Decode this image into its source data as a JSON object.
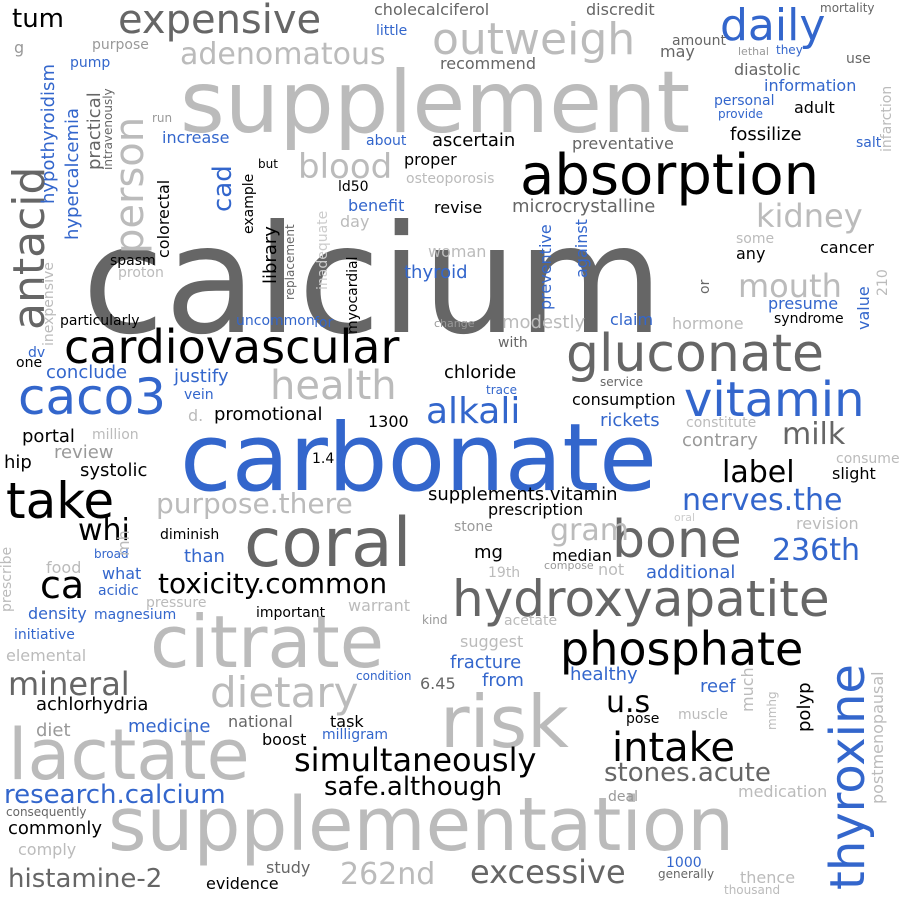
{
  "colors": {
    "black": "#000000",
    "dark": "#666666",
    "mid": "#999999",
    "light": "#bbbbbb",
    "lighter": "#cccccc",
    "blue": "#3366cc"
  },
  "words": [
    {
      "text": "calcium",
      "color": "dark"
    },
    {
      "text": "carbonate",
      "color": "blue"
    },
    {
      "text": "supplement",
      "color": "light"
    },
    {
      "text": "supplementation",
      "color": "light"
    },
    {
      "text": "absorption",
      "color": "black"
    },
    {
      "text": "coral",
      "color": "dark"
    },
    {
      "text": "citrate",
      "color": "light"
    },
    {
      "text": "risk",
      "color": "light"
    },
    {
      "text": "lactate",
      "color": "light"
    },
    {
      "text": "hydroxyapatite",
      "color": "dark"
    },
    {
      "text": "thyroxine",
      "color": "blue"
    },
    {
      "text": "gluconate",
      "color": "dark"
    },
    {
      "text": "cardiovascular",
      "color": "black"
    },
    {
      "text": "caco3",
      "color": "blue"
    },
    {
      "text": "phosphate",
      "color": "black"
    },
    {
      "text": "intake",
      "color": "black"
    },
    {
      "text": "bone",
      "color": "dark"
    },
    {
      "text": "vitamin",
      "color": "blue"
    },
    {
      "text": "take",
      "color": "black"
    },
    {
      "text": "antacid",
      "color": "dark"
    },
    {
      "text": "expensive",
      "color": "dark"
    },
    {
      "text": "outweigh",
      "color": "light"
    },
    {
      "text": "daily",
      "color": "blue"
    },
    {
      "text": "person",
      "color": "light"
    },
    {
      "text": "dietary",
      "color": "light"
    },
    {
      "text": "health",
      "color": "light"
    },
    {
      "text": "simultaneously",
      "color": "black"
    },
    {
      "text": "alkali",
      "color": "blue"
    },
    {
      "text": "excessive",
      "color": "dark"
    },
    {
      "text": "mineral",
      "color": "dark"
    },
    {
      "text": "ca",
      "color": "black"
    },
    {
      "text": "toxicity.common",
      "color": "black"
    },
    {
      "text": "purpose.there",
      "color": "light"
    },
    {
      "text": "safe.although",
      "color": "black"
    },
    {
      "text": "research.calcium",
      "color": "blue"
    },
    {
      "text": "blood",
      "color": "light"
    },
    {
      "text": "adenomatous",
      "color": "light"
    },
    {
      "text": "kidney",
      "color": "light"
    },
    {
      "text": "mouth",
      "color": "light"
    },
    {
      "text": "milk",
      "color": "dark"
    },
    {
      "text": "label",
      "color": "black"
    },
    {
      "text": "nerves.the",
      "color": "blue"
    },
    {
      "text": "236th",
      "color": "blue"
    },
    {
      "text": "gram",
      "color": "light"
    },
    {
      "text": "262nd",
      "color": "light"
    },
    {
      "text": "stones.acute",
      "color": "dark"
    },
    {
      "text": "u.s",
      "color": "black"
    },
    {
      "text": "histamine-2",
      "color": "dark"
    },
    {
      "text": "whi",
      "color": "black"
    },
    {
      "text": "tum",
      "color": "black"
    },
    {
      "text": "cad",
      "color": "blue"
    },
    {
      "text": "ascertain",
      "color": "black"
    },
    {
      "text": "microcrystalline",
      "color": "dark"
    },
    {
      "text": "chloride",
      "color": "black"
    },
    {
      "text": "conclude",
      "color": "blue"
    },
    {
      "text": "justify",
      "color": "blue"
    },
    {
      "text": "promotional",
      "color": "black"
    },
    {
      "text": "portal",
      "color": "black"
    },
    {
      "text": "hip",
      "color": "black"
    },
    {
      "text": "systolic",
      "color": "black"
    },
    {
      "text": "review",
      "color": "mid"
    },
    {
      "text": "rickets",
      "color": "blue"
    },
    {
      "text": "consumption",
      "color": "black"
    },
    {
      "text": "contrary",
      "color": "mid"
    },
    {
      "text": "supplements.vitamin",
      "color": "black"
    },
    {
      "text": "prescription",
      "color": "black"
    },
    {
      "text": "stone",
      "color": "mid"
    },
    {
      "text": "mg",
      "color": "black"
    },
    {
      "text": "median",
      "color": "black"
    },
    {
      "text": "additional",
      "color": "blue"
    },
    {
      "text": "reef",
      "color": "blue"
    },
    {
      "text": "healthy",
      "color": "blue"
    },
    {
      "text": "fracture",
      "color": "blue"
    },
    {
      "text": "from",
      "color": "blue"
    },
    {
      "text": "6.45",
      "color": "dark"
    },
    {
      "text": "achlorhydria",
      "color": "black"
    },
    {
      "text": "medicine",
      "color": "blue"
    },
    {
      "text": "national",
      "color": "dark"
    },
    {
      "text": "task",
      "color": "black"
    },
    {
      "text": "boost",
      "color": "black"
    },
    {
      "text": "milligram",
      "color": "blue"
    },
    {
      "text": "diet",
      "color": "mid"
    },
    {
      "text": "commonly",
      "color": "black"
    },
    {
      "text": "comply",
      "color": "light"
    },
    {
      "text": "study",
      "color": "dark"
    },
    {
      "text": "evidence",
      "color": "black"
    },
    {
      "text": "medication",
      "color": "light"
    },
    {
      "text": "deal",
      "color": "mid"
    },
    {
      "text": "thence",
      "color": "light"
    },
    {
      "text": "1000",
      "color": "blue"
    },
    {
      "text": "generally",
      "color": "dark"
    },
    {
      "text": "thousand",
      "color": "light"
    },
    {
      "text": "consequently",
      "color": "dark"
    },
    {
      "text": "density",
      "color": "blue"
    },
    {
      "text": "magnesium",
      "color": "blue"
    },
    {
      "text": "initiative",
      "color": "blue"
    },
    {
      "text": "elemental",
      "color": "light"
    },
    {
      "text": "important",
      "color": "black"
    },
    {
      "text": "warrant",
      "color": "light"
    },
    {
      "text": "kind",
      "color": "mid"
    },
    {
      "text": "acetate",
      "color": "light"
    },
    {
      "text": "suggest",
      "color": "light"
    },
    {
      "text": "condition",
      "color": "blue"
    },
    {
      "text": "pose",
      "color": "black"
    },
    {
      "text": "muscle",
      "color": "light"
    },
    {
      "text": "what",
      "color": "blue"
    },
    {
      "text": "acidic",
      "color": "blue"
    },
    {
      "text": "pressure",
      "color": "light"
    },
    {
      "text": "broad",
      "color": "blue"
    },
    {
      "text": "than",
      "color": "blue"
    },
    {
      "text": "diminish",
      "color": "black"
    },
    {
      "text": "food",
      "color": "light"
    },
    {
      "text": "19th",
      "color": "light"
    },
    {
      "text": "compose",
      "color": "mid"
    },
    {
      "text": "not",
      "color": "light"
    },
    {
      "text": "oral",
      "color": "lighter"
    },
    {
      "text": "revision",
      "color": "light"
    },
    {
      "text": "slight",
      "color": "black"
    },
    {
      "text": "consume",
      "color": "light"
    },
    {
      "text": "constitute",
      "color": "light"
    },
    {
      "text": "1.4",
      "color": "black"
    },
    {
      "text": "1300",
      "color": "black"
    },
    {
      "text": "million",
      "color": "light"
    },
    {
      "text": "trace",
      "color": "blue"
    },
    {
      "text": "service",
      "color": "dark"
    },
    {
      "text": "d.",
      "color": "light"
    },
    {
      "text": "vein",
      "color": "blue"
    },
    {
      "text": "with",
      "color": "dark"
    },
    {
      "text": "one",
      "color": "black"
    },
    {
      "text": "dv",
      "color": "blue"
    },
    {
      "text": "particularly",
      "color": "black"
    },
    {
      "text": "uncommon",
      "color": "blue"
    },
    {
      "text": "for",
      "color": "blue"
    },
    {
      "text": "change",
      "color": "mid"
    },
    {
      "text": "modestly",
      "color": "light"
    },
    {
      "text": "claim",
      "color": "blue"
    },
    {
      "text": "hormone",
      "color": "light"
    },
    {
      "text": "presume",
      "color": "blue"
    },
    {
      "text": "syndrome",
      "color": "black"
    },
    {
      "text": "cancer",
      "color": "black"
    },
    {
      "text": "any",
      "color": "black"
    },
    {
      "text": "some",
      "color": "light"
    },
    {
      "text": "thyroid",
      "color": "blue"
    },
    {
      "text": "woman",
      "color": "light"
    },
    {
      "text": "benefit",
      "color": "blue"
    },
    {
      "text": "revise",
      "color": "black"
    },
    {
      "text": "day",
      "color": "light"
    },
    {
      "text": "spasm",
      "color": "black"
    },
    {
      "text": "proton",
      "color": "light"
    },
    {
      "text": "ld50",
      "color": "black"
    },
    {
      "text": "osteoporosis",
      "color": "light"
    },
    {
      "text": "proper",
      "color": "black"
    },
    {
      "text": "increase",
      "color": "blue"
    },
    {
      "text": "about",
      "color": "blue"
    },
    {
      "text": "preventative",
      "color": "dark"
    },
    {
      "text": "fossilize",
      "color": "black"
    },
    {
      "text": "salt",
      "color": "blue"
    },
    {
      "text": "adult",
      "color": "black"
    },
    {
      "text": "personal",
      "color": "blue"
    },
    {
      "text": "provide",
      "color": "blue"
    },
    {
      "text": "information",
      "color": "blue"
    },
    {
      "text": "diastolic",
      "color": "dark"
    },
    {
      "text": "recommend",
      "color": "dark"
    },
    {
      "text": "amount",
      "color": "dark"
    },
    {
      "text": "may",
      "color": "dark"
    },
    {
      "text": "little",
      "color": "blue"
    },
    {
      "text": "cholecalciferol",
      "color": "dark"
    },
    {
      "text": "discredit",
      "color": "dark"
    },
    {
      "text": "mortality",
      "color": "dark"
    },
    {
      "text": "use",
      "color": "dark"
    },
    {
      "text": "lethal",
      "color": "mid"
    },
    {
      "text": "they",
      "color": "blue"
    },
    {
      "text": "purpose",
      "color": "mid"
    },
    {
      "text": "pump",
      "color": "blue"
    },
    {
      "text": "g",
      "color": "mid"
    },
    {
      "text": "run",
      "color": "mid"
    },
    {
      "text": "but",
      "color": "black"
    },
    {
      "text": "hypothyroidism",
      "color": "blue"
    },
    {
      "text": "hypercalcemia",
      "color": "blue"
    },
    {
      "text": "practical",
      "color": "dark"
    },
    {
      "text": "intravenously",
      "color": "dark"
    },
    {
      "text": "colorectal",
      "color": "black"
    },
    {
      "text": "example",
      "color": "black"
    },
    {
      "text": "library",
      "color": "black"
    },
    {
      "text": "replacement",
      "color": "dark"
    },
    {
      "text": "inadequate",
      "color": "lighter"
    },
    {
      "text": "myocardial",
      "color": "black"
    },
    {
      "text": "preventive",
      "color": "blue"
    },
    {
      "text": "against",
      "color": "blue"
    },
    {
      "text": "or",
      "color": "dark"
    },
    {
      "text": "value",
      "color": "blue"
    },
    {
      "text": "210",
      "color": "light"
    },
    {
      "text": "infarction",
      "color": "light"
    },
    {
      "text": "inexpensive",
      "color": "light"
    },
    {
      "text": "mh",
      "color": "light"
    },
    {
      "text": "prescribe",
      "color": "light"
    },
    {
      "text": "much",
      "color": "light"
    },
    {
      "text": "mmhg",
      "color": "light"
    },
    {
      "text": "polyp",
      "color": "black"
    },
    {
      "text": "postmenopausal",
      "color": "light"
    }
  ]
}
